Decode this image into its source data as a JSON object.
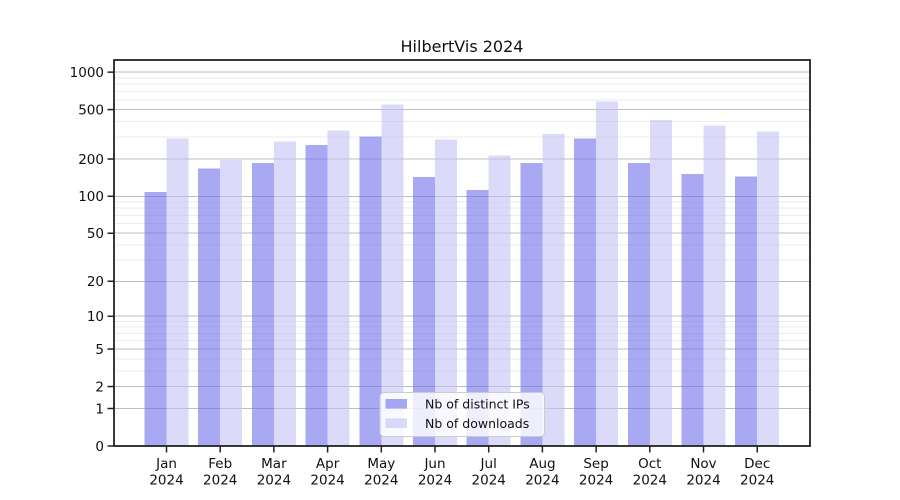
{
  "figure": {
    "title": "HilbertVis 2024"
  },
  "chart_data": {
    "type": "bar",
    "title": "HilbertVis 2024",
    "categories": [
      "Jan",
      "Feb",
      "Mar",
      "Apr",
      "May",
      "Jun",
      "Jul",
      "Aug",
      "Sep",
      "Oct",
      "Nov",
      "Dec"
    ],
    "year_label": "2024",
    "series": [
      {
        "name": "Nb of distinct IPs",
        "color": "#6E6EEB",
        "alpha": 0.6,
        "values": [
          108,
          168,
          185,
          260,
          305,
          143,
          112,
          186,
          294,
          186,
          151,
          145
        ]
      },
      {
        "name": "Nb of downloads",
        "color": "#C3C3F5",
        "alpha": 0.6,
        "values": [
          293,
          196,
          278,
          340,
          548,
          287,
          213,
          319,
          582,
          414,
          371,
          333
        ]
      }
    ],
    "yscale": "log1p",
    "yticks": [
      0,
      1,
      2,
      5,
      10,
      20,
      50,
      100,
      200,
      500,
      1000
    ],
    "ytick_labels": [
      "0",
      "1",
      "2",
      "5",
      "10",
      "20",
      "50",
      "100",
      "200",
      "500",
      "1000"
    ],
    "minor_gridlines": [
      3,
      4,
      6,
      7,
      8,
      9,
      30,
      40,
      60,
      70,
      80,
      90,
      300,
      400,
      600,
      700,
      800,
      900
    ],
    "ylim": [
      0,
      1200
    ],
    "grid": true,
    "legend": {
      "position": "lower center",
      "labels": [
        "Nb of distinct IPs",
        "Nb of downloads"
      ]
    },
    "colors": {
      "major_grid": "#BDBDBD",
      "minor_grid": "#EBEBEB",
      "axis": "#222222",
      "text": "#111111",
      "legend_border": "#CCCCCC",
      "background": "#FFFFFF"
    }
  }
}
